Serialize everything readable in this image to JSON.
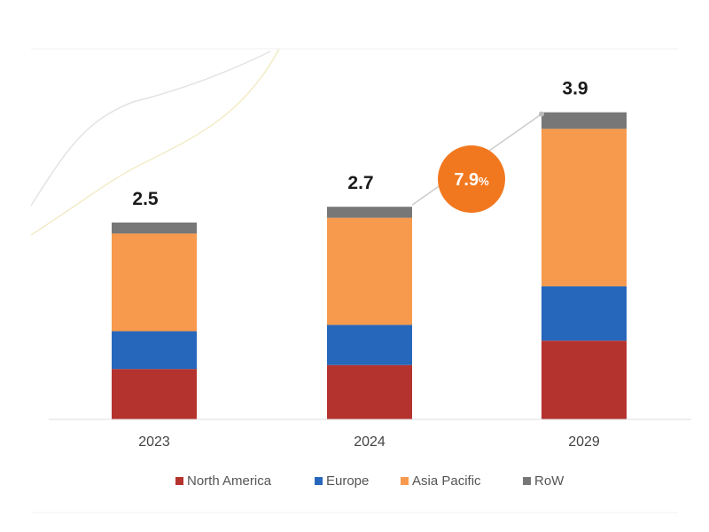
{
  "chart_data": {
    "type": "bar",
    "stacked": true,
    "categories": [
      "2023",
      "2024",
      "2029"
    ],
    "series": [
      {
        "name": "North America",
        "color": "#b5332e",
        "values": [
          0.64,
          0.69,
          1.0
        ]
      },
      {
        "name": "Europe",
        "color": "#2767bb",
        "values": [
          0.48,
          0.51,
          0.69
        ]
      },
      {
        "name": "Asia Pacific",
        "color": "#f79a4d",
        "values": [
          1.24,
          1.36,
          2.0
        ]
      },
      {
        "name": "RoW",
        "color": "#777777",
        "values": [
          0.14,
          0.14,
          0.21
        ]
      }
    ],
    "totals": [
      "2.5",
      "2.7",
      "3.9"
    ],
    "total_values": [
      2.5,
      2.7,
      3.9
    ],
    "ylim": [
      0,
      4.2
    ],
    "grid": false,
    "legend_position": "bottom",
    "annotation": {
      "value": "7.9",
      "unit": "%",
      "color": "#f2781f"
    }
  }
}
